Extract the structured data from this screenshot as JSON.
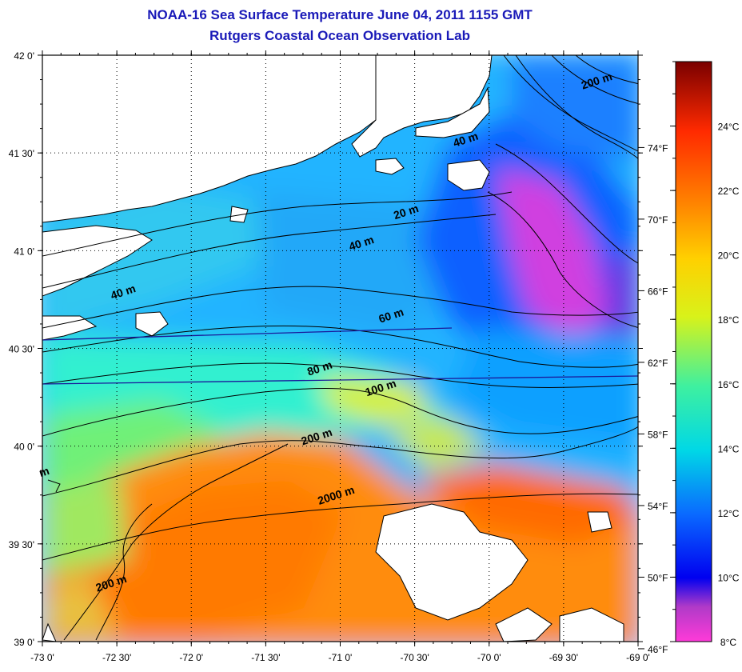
{
  "header": {
    "title": "NOAA-16 Sea Surface Temperature June 04, 2011 1155 GMT",
    "subtitle": "Rutgers Coastal Ocean Observation Lab"
  },
  "map": {
    "lon_range": [
      -73.0,
      -69.0
    ],
    "lat_range": [
      39.0,
      42.0
    ],
    "grid": "dotted",
    "lon_ticks": [
      "-73 0'",
      "-72 30'",
      "-72 0'",
      "-71 30'",
      "-71 0'",
      "-70 30'",
      "-70 0'",
      "-69 30'",
      "-69 0'"
    ],
    "lat_ticks": [
      "39 0'",
      "39 30'",
      "40 0'",
      "40 30'",
      "41 0'",
      "41 30'",
      "42 0'"
    ],
    "fahrenheit_ticks": [
      "46°F",
      "50°F",
      "54°F",
      "58°F",
      "62°F",
      "66°F",
      "70°F",
      "74°F"
    ],
    "contour_labels": [
      {
        "text": "20 m",
        "lon": -70.55,
        "lat": 41.18
      },
      {
        "text": "40 m",
        "lon": -70.15,
        "lat": 41.55
      },
      {
        "text": "40 m",
        "lon": -70.85,
        "lat": 41.02
      },
      {
        "text": "40 m",
        "lon": -72.45,
        "lat": 40.77
      },
      {
        "text": "60 m",
        "lon": -70.65,
        "lat": 40.65
      },
      {
        "text": "80 m",
        "lon": -71.13,
        "lat": 40.38
      },
      {
        "text": "100 m",
        "lon": -70.72,
        "lat": 40.28
      },
      {
        "text": "200 m",
        "lon": -71.15,
        "lat": 40.03
      },
      {
        "text": "200 m",
        "lon": -69.27,
        "lat": 41.85
      },
      {
        "text": "200 m",
        "lon": -72.53,
        "lat": 39.28
      },
      {
        "text": "2000 m",
        "lon": -71.02,
        "lat": 39.73
      },
      {
        "text": "m",
        "lon": -72.98,
        "lat": 39.85
      }
    ]
  },
  "colorbar": {
    "label_celsius": [
      "8°C",
      "10°C",
      "12°C",
      "14°C",
      "16°C",
      "18°C",
      "20°C",
      "22°C",
      "24°C"
    ],
    "range_celsius": [
      8,
      26
    ],
    "colors": [
      "#ff3ad8",
      "#7a1fb0",
      "#0000f0",
      "#0a6aff",
      "#00d8e6",
      "#3ef0a0",
      "#d8f21a",
      "#ffd000",
      "#ff8000",
      "#ff2a00",
      "#b00000",
      "#7a0000"
    ]
  }
}
